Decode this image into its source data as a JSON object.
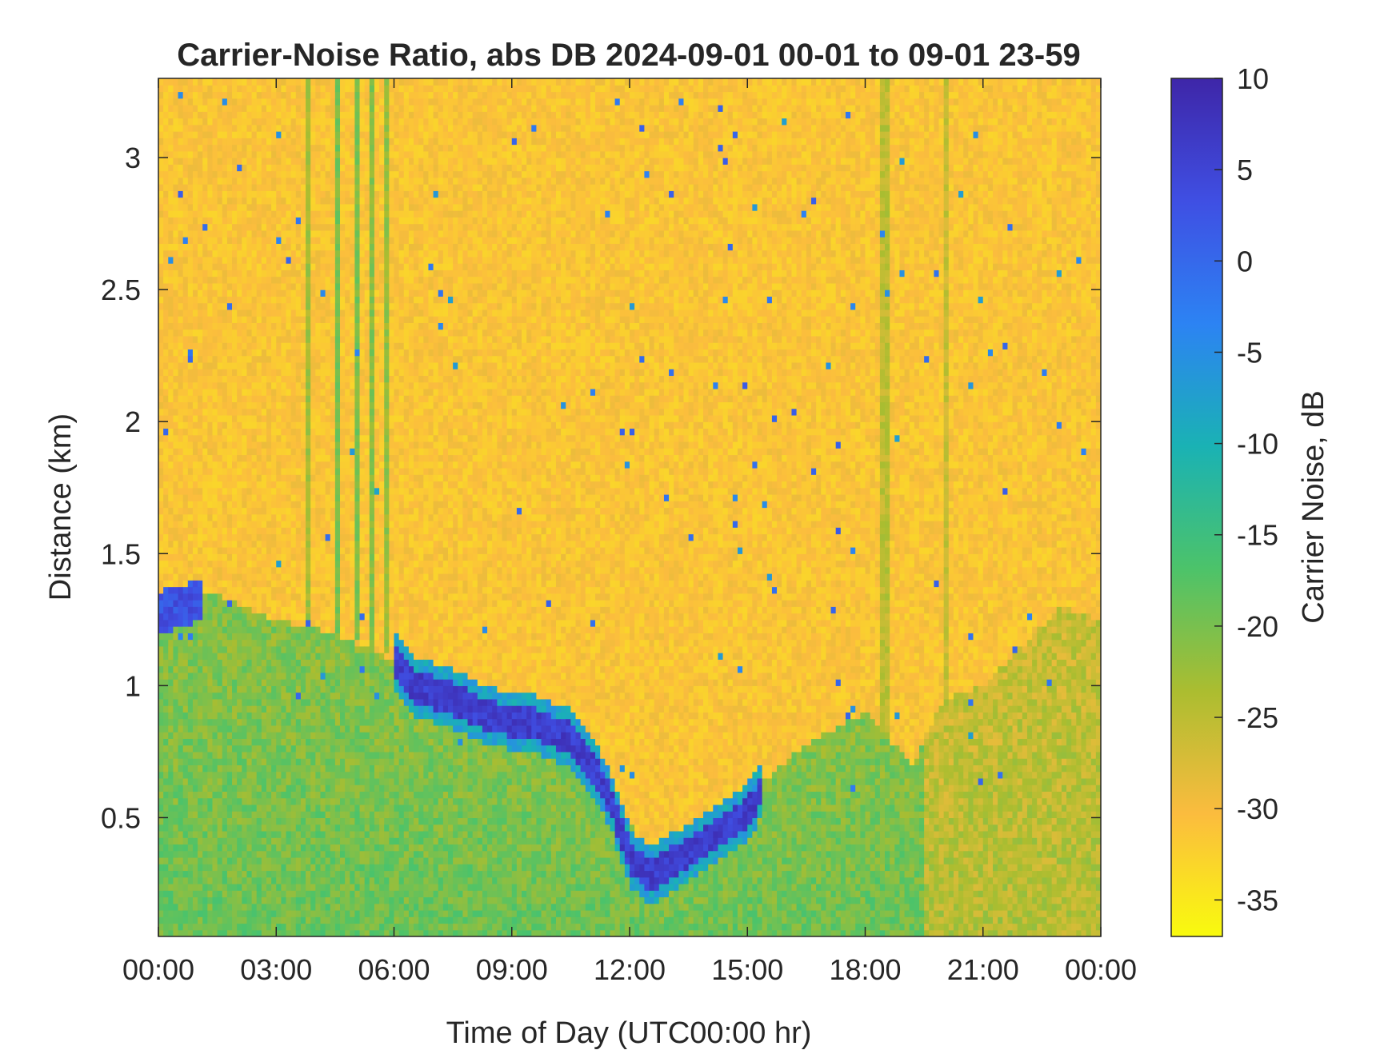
{
  "chart_data": {
    "type": "heatmap",
    "title": "Carrier-Noise Ratio, abs DB 2024-09-01 00-01 to 09-01 23-59",
    "xlabel": "Time of Day (UTC00:00 hr)",
    "ylabel": "Distance (km)",
    "x_range_hours": [
      0,
      24
    ],
    "y_range_km": [
      0.05,
      3.3
    ],
    "x_ticks": [
      {
        "value": 0,
        "label": "00:00"
      },
      {
        "value": 3,
        "label": "03:00"
      },
      {
        "value": 6,
        "label": "06:00"
      },
      {
        "value": 9,
        "label": "09:00"
      },
      {
        "value": 12,
        "label": "12:00"
      },
      {
        "value": 15,
        "label": "15:00"
      },
      {
        "value": 18,
        "label": "18:00"
      },
      {
        "value": 21,
        "label": "21:00"
      },
      {
        "value": 24,
        "label": "00:00"
      }
    ],
    "y_ticks": [
      {
        "value": 0.5,
        "label": "0.5"
      },
      {
        "value": 1,
        "label": "1"
      },
      {
        "value": 1.5,
        "label": "1.5"
      },
      {
        "value": 2,
        "label": "2"
      },
      {
        "value": 2.5,
        "label": "2.5"
      },
      {
        "value": 3,
        "label": "3"
      }
    ],
    "colorbar": {
      "label": "Carrier Noise, dB",
      "range": [
        -37,
        10
      ],
      "ticks": [
        {
          "value": 10,
          "label": "10"
        },
        {
          "value": 5,
          "label": "5"
        },
        {
          "value": 0,
          "label": "0"
        },
        {
          "value": -5,
          "label": "-5"
        },
        {
          "value": -10,
          "label": "-10"
        },
        {
          "value": -15,
          "label": "-15"
        },
        {
          "value": -20,
          "label": "-20"
        },
        {
          "value": -25,
          "label": "-25"
        },
        {
          "value": -30,
          "label": "-30"
        },
        {
          "value": -35,
          "label": "-35"
        }
      ],
      "colormap": "parula",
      "colors": [
        "#f9fb0e",
        "#fbbc3e",
        "#abbd30",
        "#4cc36a",
        "#1ab2b4",
        "#2c83f3",
        "#3f4fe3",
        "#3e26a8"
      ]
    },
    "background_value_db": -31,
    "low_layer": {
      "description_values_db": -19,
      "top_km": [
        [
          0,
          1.3
        ],
        [
          1.5,
          1.35
        ],
        [
          3,
          1.25
        ],
        [
          4.5,
          1.2
        ],
        [
          6,
          1.1
        ],
        [
          7,
          0.98
        ],
        [
          9,
          0.88
        ],
        [
          10.5,
          0.8
        ],
        [
          11.5,
          0.62
        ],
        [
          12.3,
          0.4
        ],
        [
          13,
          0.36
        ],
        [
          14,
          0.42
        ],
        [
          15,
          0.58
        ],
        [
          16,
          0.72
        ],
        [
          17,
          0.82
        ],
        [
          18,
          0.9
        ],
        [
          19.2,
          0.7
        ],
        [
          20,
          0.95
        ],
        [
          21,
          1.0
        ],
        [
          22,
          1.15
        ],
        [
          23,
          1.3
        ],
        [
          24,
          1.25
        ]
      ]
    },
    "aerosol_boundary": {
      "value_db": 6,
      "distance_km": [
        [
          6,
          1.1
        ],
        [
          6.5,
          1.0
        ],
        [
          7.5,
          0.95
        ],
        [
          8.5,
          0.88
        ],
        [
          9.5,
          0.86
        ],
        [
          10.5,
          0.8
        ],
        [
          11,
          0.7
        ],
        [
          11.5,
          0.58
        ],
        [
          12,
          0.35
        ],
        [
          12.5,
          0.28
        ],
        [
          13.2,
          0.34
        ],
        [
          14,
          0.42
        ],
        [
          15,
          0.52
        ],
        [
          15.4,
          0.62
        ]
      ]
    },
    "early_layer": {
      "value_db": 3,
      "distance_km": [
        [
          0,
          1.28
        ],
        [
          0.5,
          1.3
        ],
        [
          1,
          1.32
        ]
      ]
    },
    "streaks": [
      {
        "x": 4.6,
        "value_db": -20
      },
      {
        "x": 5.1,
        "value_db": -20
      },
      {
        "x": 5.4,
        "value_db": -21
      },
      {
        "x": 5.8,
        "value_db": -22
      },
      {
        "x": 3.8,
        "value_db": -23
      },
      {
        "x": 18.5,
        "value_db": -25
      },
      {
        "x": 20.1,
        "value_db": -26
      }
    ]
  }
}
